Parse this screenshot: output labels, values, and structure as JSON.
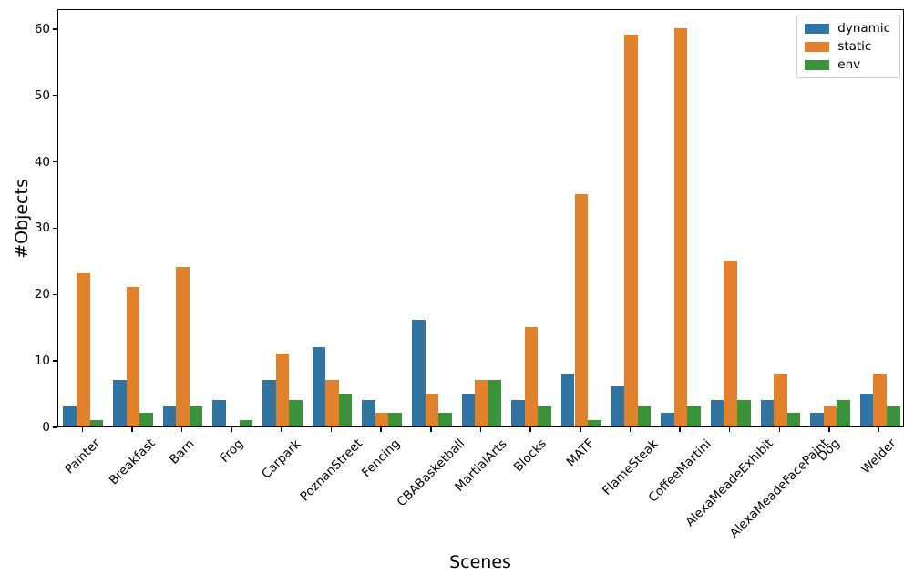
{
  "chart_data": {
    "type": "bar",
    "title": "",
    "xlabel": "Scenes",
    "ylabel": "#Objects",
    "categories": [
      "Painter",
      "Breakfast",
      "Barn",
      "Frog",
      "Carpark",
      "PoznanStreet",
      "Fencing",
      "CBABasketball",
      "MartialArts",
      "Blocks",
      "MATF",
      "FlameSteak",
      "CoffeeMartini",
      "AlexaMeadeExhibit",
      "AlexaMeadeFacePaint",
      "Dog",
      "Welder"
    ],
    "series": [
      {
        "name": "dynamic",
        "color": "#3274a1",
        "values": [
          3,
          7,
          3,
          4,
          7,
          12,
          4,
          16,
          5,
          4,
          8,
          6,
          2,
          4,
          4,
          2,
          5
        ]
      },
      {
        "name": "static",
        "color": "#e1812c",
        "values": [
          23,
          21,
          24,
          0,
          11,
          7,
          2,
          5,
          7,
          15,
          35,
          59,
          60,
          25,
          8,
          3,
          8
        ]
      },
      {
        "name": "env",
        "color": "#3a923a",
        "values": [
          1,
          2,
          3,
          1,
          4,
          5,
          2,
          2,
          7,
          3,
          1,
          3,
          3,
          4,
          2,
          4,
          3
        ]
      }
    ],
    "ylim": [
      0,
      63
    ],
    "yticks": [
      0,
      10,
      20,
      30,
      40,
      50,
      60
    ],
    "legend_position": "upper-right",
    "grid": false,
    "bar_group_fraction": 0.8
  }
}
